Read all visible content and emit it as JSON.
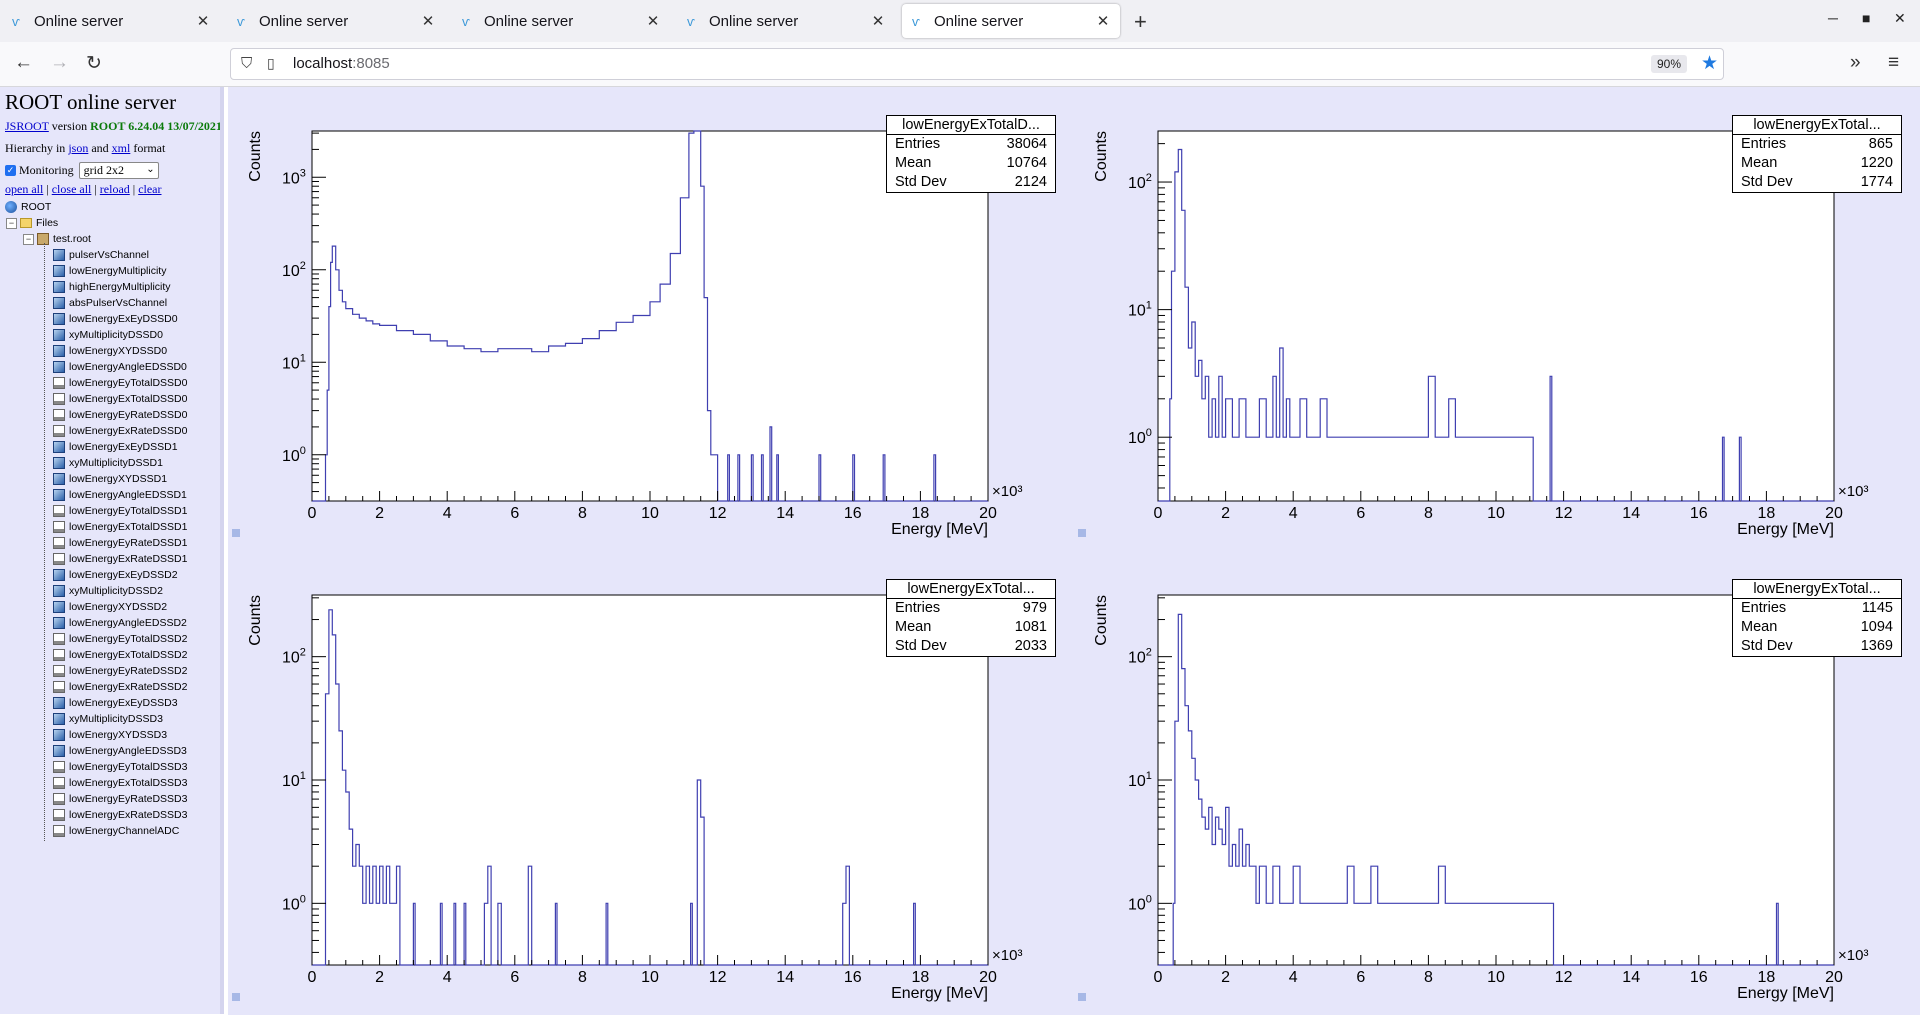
{
  "browser": {
    "tabs": [
      {
        "label": "Online server"
      },
      {
        "label": "Online server"
      },
      {
        "label": "Online server"
      },
      {
        "label": "Online server"
      },
      {
        "label": "Online server"
      }
    ],
    "url_host": "localhost",
    "url_port": ":8085",
    "zoom": "90%"
  },
  "sidebar": {
    "title": "ROOT online server",
    "jsroot_link": "JSROOT",
    "version_word": "version",
    "version_value": "ROOT 6.24.04 13/07/2021",
    "hier_prefix": "Hierarchy in",
    "json_link": "json",
    "and_word": "and",
    "xml_link": "xml",
    "format_word": "format",
    "monitoring_label": "Monitoring",
    "layout_value": "grid 2x2",
    "links": {
      "open_all": "open all",
      "close_all": "close all",
      "reload": "reload",
      "clear": "clear"
    },
    "tree_root": "ROOT",
    "tree_files": "Files",
    "tree_file": "test.root",
    "items": [
      {
        "label": "pulserVsChannel",
        "icon": "h2"
      },
      {
        "label": "lowEnergyMultiplicity",
        "icon": "h2"
      },
      {
        "label": "highEnergyMultiplicity",
        "icon": "h2"
      },
      {
        "label": "absPulserVsChannel",
        "icon": "h2"
      },
      {
        "label": "lowEnergyExEyDSSD0",
        "icon": "h2"
      },
      {
        "label": "xyMultiplicityDSSD0",
        "icon": "h2"
      },
      {
        "label": "lowEnergyXYDSSD0",
        "icon": "h2"
      },
      {
        "label": "lowEnergyAngleEDSSD0",
        "icon": "h2"
      },
      {
        "label": "lowEnergyEyTotalDSSD0",
        "icon": "h1"
      },
      {
        "label": "lowEnergyExTotalDSSD0",
        "icon": "h1"
      },
      {
        "label": "lowEnergyEyRateDSSD0",
        "icon": "h1"
      },
      {
        "label": "lowEnergyExRateDSSD0",
        "icon": "h1"
      },
      {
        "label": "lowEnergyExEyDSSD1",
        "icon": "h2"
      },
      {
        "label": "xyMultiplicityDSSD1",
        "icon": "h2"
      },
      {
        "label": "lowEnergyXYDSSD1",
        "icon": "h2"
      },
      {
        "label": "lowEnergyAngleEDSSD1",
        "icon": "h2"
      },
      {
        "label": "lowEnergyEyTotalDSSD1",
        "icon": "h1"
      },
      {
        "label": "lowEnergyExTotalDSSD1",
        "icon": "h1"
      },
      {
        "label": "lowEnergyEyRateDSSD1",
        "icon": "h1"
      },
      {
        "label": "lowEnergyExRateDSSD1",
        "icon": "h1"
      },
      {
        "label": "lowEnergyExEyDSSD2",
        "icon": "h2"
      },
      {
        "label": "xyMultiplicityDSSD2",
        "icon": "h2"
      },
      {
        "label": "lowEnergyXYDSSD2",
        "icon": "h2"
      },
      {
        "label": "lowEnergyAngleEDSSD2",
        "icon": "h2"
      },
      {
        "label": "lowEnergyEyTotalDSSD2",
        "icon": "h1"
      },
      {
        "label": "lowEnergyExTotalDSSD2",
        "icon": "h1"
      },
      {
        "label": "lowEnergyEyRateDSSD2",
        "icon": "h1"
      },
      {
        "label": "lowEnergyExRateDSSD2",
        "icon": "h1"
      },
      {
        "label": "lowEnergyExEyDSSD3",
        "icon": "h2"
      },
      {
        "label": "xyMultiplicityDSSD3",
        "icon": "h2"
      },
      {
        "label": "lowEnergyXYDSSD3",
        "icon": "h2"
      },
      {
        "label": "lowEnergyAngleEDSSD3",
        "icon": "h2"
      },
      {
        "label": "lowEnergyEyTotalDSSD3",
        "icon": "h1"
      },
      {
        "label": "lowEnergyExTotalDSSD3",
        "icon": "h1"
      },
      {
        "label": "lowEnergyEyRateDSSD3",
        "icon": "h1"
      },
      {
        "label": "lowEnergyExRateDSSD3",
        "icon": "h1"
      },
      {
        "label": "lowEnergyChannelADC",
        "icon": "h1"
      }
    ]
  },
  "colors": {
    "histogram_line": "#3f3fb0",
    "panel_background": "#e6e6fa"
  },
  "chart_data": [
    {
      "type": "area",
      "ylog": true,
      "stat_title": "lowEnergyExTotalD...",
      "stats": [
        [
          "Entries",
          "38064"
        ],
        [
          "Mean",
          "10764"
        ],
        [
          "Std Dev",
          "2124"
        ]
      ],
      "xlabel": "Energy [MeV]",
      "ylabel": "Counts",
      "xmult": "×10³",
      "xlim": [
        0,
        20
      ],
      "ylim_log10": [
        -0.5,
        3.5
      ],
      "xticks": [
        "0",
        "2",
        "4",
        "6",
        "8",
        "10",
        "12",
        "14",
        "16",
        "18",
        "20"
      ],
      "ytick_exponents": [
        0,
        1,
        2,
        3
      ],
      "points": [
        [
          0,
          0.0001
        ],
        [
          0.3,
          0.0001
        ],
        [
          0.4,
          1
        ],
        [
          0.45,
          5
        ],
        [
          0.5,
          40
        ],
        [
          0.55,
          120
        ],
        [
          0.6,
          180
        ],
        [
          0.7,
          100
        ],
        [
          0.8,
          60
        ],
        [
          0.9,
          45
        ],
        [
          1.0,
          38
        ],
        [
          1.2,
          33
        ],
        [
          1.4,
          30
        ],
        [
          1.6,
          28
        ],
        [
          1.8,
          26
        ],
        [
          2.0,
          25
        ],
        [
          2.5,
          22
        ],
        [
          3.0,
          20
        ],
        [
          3.5,
          17
        ],
        [
          4.0,
          15
        ],
        [
          4.5,
          14
        ],
        [
          5.0,
          13
        ],
        [
          5.5,
          14
        ],
        [
          6.0,
          14
        ],
        [
          6.5,
          13
        ],
        [
          7.0,
          15
        ],
        [
          7.5,
          16
        ],
        [
          8.0,
          18
        ],
        [
          8.5,
          22
        ],
        [
          9.0,
          27
        ],
        [
          9.5,
          32
        ],
        [
          10.0,
          45
        ],
        [
          10.3,
          70
        ],
        [
          10.6,
          150
        ],
        [
          10.9,
          600
        ],
        [
          11.15,
          3000
        ],
        [
          11.3,
          8000
        ],
        [
          11.4,
          5000
        ],
        [
          11.5,
          800
        ],
        [
          11.6,
          50
        ],
        [
          11.7,
          3
        ],
        [
          11.8,
          1
        ],
        [
          12.0,
          0.0001
        ],
        [
          12.3,
          1
        ],
        [
          12.35,
          0.0001
        ],
        [
          12.6,
          1
        ],
        [
          12.65,
          0.0001
        ],
        [
          13.0,
          1
        ],
        [
          13.05,
          0.0001
        ],
        [
          13.3,
          1
        ],
        [
          13.35,
          0.0001
        ],
        [
          13.55,
          2
        ],
        [
          13.6,
          0.0001
        ],
        [
          13.75,
          1
        ],
        [
          13.8,
          0.0001
        ],
        [
          15.0,
          1
        ],
        [
          15.05,
          0.0001
        ],
        [
          16.0,
          1
        ],
        [
          16.05,
          0.0001
        ],
        [
          16.9,
          1
        ],
        [
          16.95,
          0.0001
        ],
        [
          18.4,
          1
        ],
        [
          18.45,
          0.0001
        ],
        [
          20,
          0.0001
        ]
      ]
    },
    {
      "type": "area",
      "ylog": true,
      "stat_title": "lowEnergyExTotal...",
      "stats": [
        [
          "Entries",
          "865"
        ],
        [
          "Mean",
          "1220"
        ],
        [
          "Std Dev",
          "1774"
        ]
      ],
      "xlabel": "Energy [MeV]",
      "ylabel": "Counts",
      "xmult": "×10³",
      "xlim": [
        0,
        20
      ],
      "ylim_log10": [
        -0.5,
        2.4
      ],
      "xticks": [
        "0",
        "2",
        "4",
        "6",
        "8",
        "10",
        "12",
        "14",
        "16",
        "18",
        "20"
      ],
      "ytick_exponents": [
        0,
        1,
        2
      ],
      "points": [
        [
          0,
          0.0001
        ],
        [
          0.3,
          0.0001
        ],
        [
          0.35,
          2
        ],
        [
          0.4,
          20
        ],
        [
          0.5,
          120
        ],
        [
          0.6,
          180
        ],
        [
          0.7,
          60
        ],
        [
          0.8,
          15
        ],
        [
          0.9,
          5
        ],
        [
          1.0,
          8
        ],
        [
          1.1,
          3
        ],
        [
          1.2,
          4
        ],
        [
          1.3,
          2
        ],
        [
          1.4,
          3
        ],
        [
          1.5,
          1
        ],
        [
          1.6,
          2
        ],
        [
          1.7,
          1
        ],
        [
          1.8,
          3
        ],
        [
          1.9,
          1
        ],
        [
          2.0,
          2
        ],
        [
          2.2,
          1
        ],
        [
          2.4,
          2
        ],
        [
          2.6,
          1
        ],
        [
          2.8,
          1
        ],
        [
          3.0,
          2
        ],
        [
          3.2,
          1
        ],
        [
          3.4,
          3
        ],
        [
          3.5,
          1
        ],
        [
          3.6,
          5
        ],
        [
          3.7,
          1
        ],
        [
          3.8,
          2
        ],
        [
          3.9,
          1
        ],
        [
          4.0,
          1
        ],
        [
          4.2,
          2
        ],
        [
          4.4,
          1
        ],
        [
          4.6,
          1
        ],
        [
          4.8,
          2
        ],
        [
          5.0,
          1
        ],
        [
          5.2,
          1
        ],
        [
          5.4,
          1
        ],
        [
          5.6,
          1
        ],
        [
          5.8,
          1
        ],
        [
          6.0,
          1
        ],
        [
          6.2,
          1
        ],
        [
          6.4,
          1
        ],
        [
          6.6,
          1
        ],
        [
          6.8,
          1
        ],
        [
          7.0,
          1
        ],
        [
          7.2,
          1
        ],
        [
          7.4,
          1
        ],
        [
          7.6,
          1
        ],
        [
          7.8,
          1
        ],
        [
          8.0,
          3
        ],
        [
          8.2,
          1
        ],
        [
          8.4,
          1
        ],
        [
          8.6,
          2
        ],
        [
          8.8,
          1
        ],
        [
          9.0,
          1
        ],
        [
          9.2,
          1
        ],
        [
          9.4,
          1
        ],
        [
          9.6,
          1
        ],
        [
          9.8,
          1
        ],
        [
          10.0,
          1
        ],
        [
          10.3,
          1
        ],
        [
          10.6,
          1
        ],
        [
          11.0,
          1
        ],
        [
          11.1,
          0.0001
        ],
        [
          11.6,
          3
        ],
        [
          11.65,
          0.0001
        ],
        [
          16.7,
          1
        ],
        [
          16.75,
          0.0001
        ],
        [
          17.2,
          1
        ],
        [
          17.25,
          0.0001
        ],
        [
          20,
          0.0001
        ]
      ]
    },
    {
      "type": "area",
      "ylog": true,
      "stat_title": "lowEnergyExTotal...",
      "stats": [
        [
          "Entries",
          "979"
        ],
        [
          "Mean",
          "1081"
        ],
        [
          "Std Dev",
          "2033"
        ]
      ],
      "xlabel": "Energy [MeV]",
      "ylabel": "Counts",
      "xmult": "×10³",
      "xlim": [
        0,
        20
      ],
      "ylim_log10": [
        -0.5,
        2.5
      ],
      "xticks": [
        "0",
        "2",
        "4",
        "6",
        "8",
        "10",
        "12",
        "14",
        "16",
        "18",
        "20"
      ],
      "ytick_exponents": [
        0,
        1,
        2
      ],
      "points": [
        [
          0,
          0.0001
        ],
        [
          0.35,
          0.0001
        ],
        [
          0.4,
          50
        ],
        [
          0.5,
          240
        ],
        [
          0.6,
          150
        ],
        [
          0.7,
          60
        ],
        [
          0.8,
          25
        ],
        [
          0.9,
          12
        ],
        [
          1.0,
          8
        ],
        [
          1.1,
          4
        ],
        [
          1.2,
          2
        ],
        [
          1.3,
          3
        ],
        [
          1.4,
          2
        ],
        [
          1.5,
          1
        ],
        [
          1.6,
          2
        ],
        [
          1.7,
          1
        ],
        [
          1.8,
          2
        ],
        [
          1.9,
          1
        ],
        [
          2.0,
          2
        ],
        [
          2.1,
          1
        ],
        [
          2.2,
          2
        ],
        [
          2.3,
          1
        ],
        [
          2.5,
          2
        ],
        [
          2.6,
          0.0001
        ],
        [
          3.0,
          1
        ],
        [
          3.05,
          0.0001
        ],
        [
          3.8,
          1
        ],
        [
          3.85,
          0.0001
        ],
        [
          4.2,
          1
        ],
        [
          4.25,
          0.0001
        ],
        [
          4.5,
          1
        ],
        [
          4.55,
          0.0001
        ],
        [
          5.1,
          1
        ],
        [
          5.2,
          2
        ],
        [
          5.3,
          0.0001
        ],
        [
          5.5,
          1
        ],
        [
          5.6,
          0.0001
        ],
        [
          6.4,
          2
        ],
        [
          6.5,
          0.0001
        ],
        [
          7.2,
          1
        ],
        [
          7.25,
          0.0001
        ],
        [
          8.7,
          1
        ],
        [
          8.75,
          0.0001
        ],
        [
          11.2,
          1
        ],
        [
          11.25,
          0.0001
        ],
        [
          11.4,
          10
        ],
        [
          11.5,
          5
        ],
        [
          11.6,
          0.0001
        ],
        [
          15.7,
          1
        ],
        [
          15.8,
          2
        ],
        [
          15.9,
          0.0001
        ],
        [
          17.8,
          1
        ],
        [
          17.85,
          0.0001
        ],
        [
          20,
          0.0001
        ]
      ]
    },
    {
      "type": "area",
      "ylog": true,
      "stat_title": "lowEnergyExTotal...",
      "stats": [
        [
          "Entries",
          "1145"
        ],
        [
          "Mean",
          "1094"
        ],
        [
          "Std Dev",
          "1369"
        ]
      ],
      "xlabel": "Energy [MeV]",
      "ylabel": "Counts",
      "xmult": "×10³",
      "xlim": [
        0,
        20
      ],
      "ylim_log10": [
        -0.5,
        2.5
      ],
      "xticks": [
        "0",
        "2",
        "4",
        "6",
        "8",
        "10",
        "12",
        "14",
        "16",
        "18",
        "20"
      ],
      "ytick_exponents": [
        0,
        1,
        2
      ],
      "points": [
        [
          0,
          0.0001
        ],
        [
          0.4,
          0.0001
        ],
        [
          0.45,
          1
        ],
        [
          0.5,
          30
        ],
        [
          0.6,
          220
        ],
        [
          0.7,
          80
        ],
        [
          0.8,
          40
        ],
        [
          0.9,
          25
        ],
        [
          1.0,
          15
        ],
        [
          1.1,
          10
        ],
        [
          1.2,
          7
        ],
        [
          1.3,
          5
        ],
        [
          1.4,
          4
        ],
        [
          1.5,
          6
        ],
        [
          1.6,
          3
        ],
        [
          1.7,
          5
        ],
        [
          1.8,
          4
        ],
        [
          1.9,
          3
        ],
        [
          2.0,
          6
        ],
        [
          2.1,
          2
        ],
        [
          2.2,
          3
        ],
        [
          2.3,
          2
        ],
        [
          2.4,
          4
        ],
        [
          2.5,
          2
        ],
        [
          2.6,
          3
        ],
        [
          2.7,
          2
        ],
        [
          2.8,
          2
        ],
        [
          2.9,
          1
        ],
        [
          3.0,
          2
        ],
        [
          3.2,
          1
        ],
        [
          3.4,
          2
        ],
        [
          3.6,
          1
        ],
        [
          3.8,
          1
        ],
        [
          4.0,
          2
        ],
        [
          4.2,
          1
        ],
        [
          4.4,
          1
        ],
        [
          4.6,
          1
        ],
        [
          4.8,
          1
        ],
        [
          5.0,
          1
        ],
        [
          5.2,
          1
        ],
        [
          5.4,
          1
        ],
        [
          5.6,
          2
        ],
        [
          5.8,
          1
        ],
        [
          6.0,
          1
        ],
        [
          6.3,
          2
        ],
        [
          6.5,
          1
        ],
        [
          6.8,
          1
        ],
        [
          7.0,
          1
        ],
        [
          7.2,
          1
        ],
        [
          7.5,
          1
        ],
        [
          7.8,
          1
        ],
        [
          8.0,
          1
        ],
        [
          8.3,
          2
        ],
        [
          8.5,
          1
        ],
        [
          9.0,
          1
        ],
        [
          9.3,
          1
        ],
        [
          9.6,
          1
        ],
        [
          10.0,
          1
        ],
        [
          10.4,
          1
        ],
        [
          10.8,
          1
        ],
        [
          11.2,
          1
        ],
        [
          11.6,
          1
        ],
        [
          11.7,
          0.0001
        ],
        [
          18.3,
          1
        ],
        [
          18.35,
          0.0001
        ],
        [
          20,
          0.0001
        ]
      ]
    }
  ]
}
